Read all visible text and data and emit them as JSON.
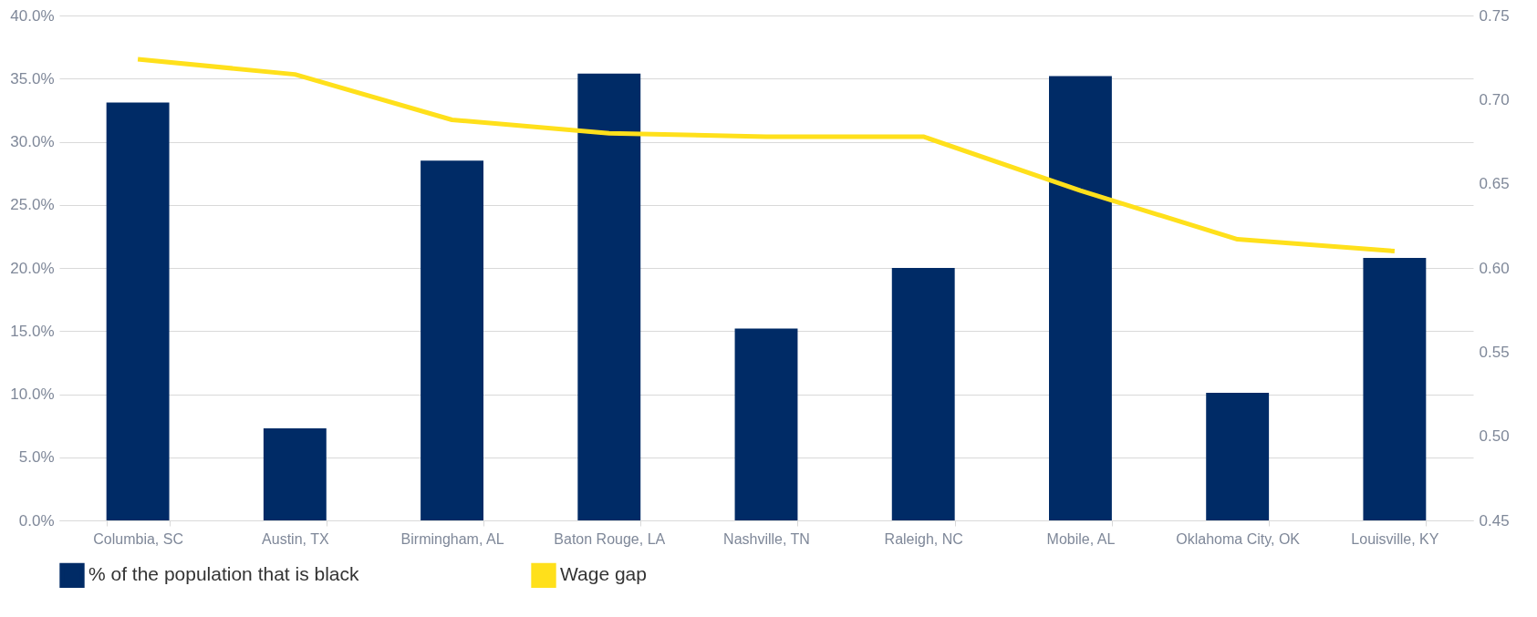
{
  "chart_data": {
    "type": "bar",
    "categories": [
      "Columbia, SC",
      "Austin, TX",
      "Birmingham, AL",
      "Baton Rouge, LA",
      "Nashville, TN",
      "Raleigh, NC",
      "Mobile, AL",
      "Oklahoma City, OK",
      "Louisville, KY"
    ],
    "series": [
      {
        "name": "% of the population that is black",
        "color": "#002b66",
        "values": [
          33.1,
          7.3,
          28.5,
          35.4,
          15.2,
          20.0,
          35.2,
          10.1,
          20.8
        ]
      },
      {
        "name": "Wage gap",
        "type": "line",
        "axis": "y2",
        "color": "#ffe01b",
        "values": [
          0.724,
          0.715,
          0.688,
          0.68,
          0.678,
          0.678,
          0.646,
          0.617,
          0.61
        ]
      }
    ],
    "ylim": [
      0,
      40
    ],
    "yticks": [
      {
        "value": 0,
        "label": "0.0%"
      },
      {
        "value": 5,
        "label": "5.0%"
      },
      {
        "value": 10,
        "label": "10.0%"
      },
      {
        "value": 15,
        "label": "15.0%"
      },
      {
        "value": 20,
        "label": "20.0%"
      },
      {
        "value": 25,
        "label": "25.0%"
      },
      {
        "value": 30,
        "label": "30.0%"
      },
      {
        "value": 35,
        "label": "35.0%"
      },
      {
        "value": 40,
        "label": "40.0%"
      }
    ],
    "y2lim": [
      0.45,
      0.75
    ],
    "y2ticks": [
      0.45,
      {
        "value": 0.5,
        "label": "0.50"
      },
      0.55,
      {
        "value": 0.6,
        "label": "0.60"
      },
      0.65,
      {
        "value": 0.7,
        "label": "0.70"
      },
      0.75
    ],
    "grid": "y",
    "legend": "bottom"
  }
}
